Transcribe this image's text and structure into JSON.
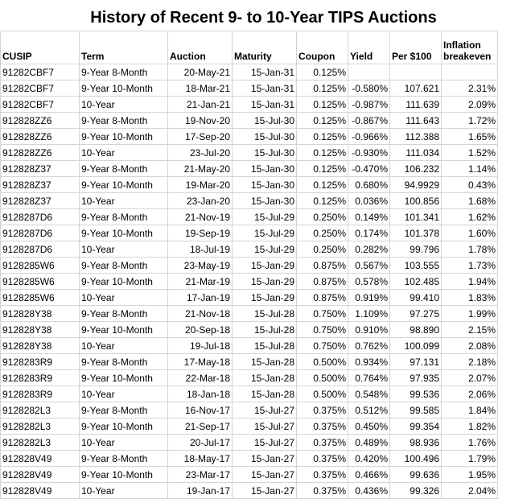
{
  "title": "History of Recent 9- to 10-Year TIPS Auctions",
  "headers": [
    "CUSIP",
    "Term",
    "Auction",
    "Maturity",
    "Coupon",
    "Yield",
    "Per $100",
    "Inflation breakeven"
  ],
  "rows": [
    [
      "91282CBF7",
      "9-Year 8-Month",
      "20-May-21",
      "15-Jan-31",
      "0.125%",
      "",
      "",
      ""
    ],
    [
      "91282CBF7",
      "9-Year 10-Month",
      "18-Mar-21",
      "15-Jan-31",
      "0.125%",
      "-0.580%",
      "107.621",
      "2.31%"
    ],
    [
      "91282CBF7",
      "10-Year",
      "21-Jan-21",
      "15-Jan-31",
      "0.125%",
      "-0.987%",
      "111.639",
      "2.09%"
    ],
    [
      "912828ZZ6",
      "9-Year 8-Month",
      "19-Nov-20",
      "15-Jul-30",
      "0.125%",
      "-0.867%",
      "111.643",
      "1.72%"
    ],
    [
      "912828ZZ6",
      "9-Year 10-Month",
      "17-Sep-20",
      "15-Jul-30",
      "0.125%",
      "-0.966%",
      "112.388",
      "1.65%"
    ],
    [
      "912828ZZ6",
      "10-Year",
      "23-Jul-20",
      "15-Jul-30",
      "0.125%",
      "-0.930%",
      "111.034",
      "1.52%"
    ],
    [
      "912828Z37",
      "9-Year 8-Month",
      "21-May-20",
      "15-Jan-30",
      "0.125%",
      "-0.470%",
      "106.232",
      "1.14%"
    ],
    [
      "912828Z37",
      "9-Year 10-Month",
      "19-Mar-20",
      "15-Jan-30",
      "0.125%",
      "0.680%",
      "94.9929",
      "0.43%"
    ],
    [
      "912828Z37",
      "10-Year",
      "23-Jan-20",
      "15-Jan-30",
      "0.125%",
      "0.036%",
      "100.856",
      "1.68%"
    ],
    [
      "9128287D6",
      "9-Year 8-Month",
      "21-Nov-19",
      "15-Jul-29",
      "0.250%",
      "0.149%",
      "101.341",
      "1.62%"
    ],
    [
      "9128287D6",
      "9-Year 10-Month",
      "19-Sep-19",
      "15-Jul-29",
      "0.250%",
      "0.174%",
      "101.378",
      "1.60%"
    ],
    [
      "9128287D6",
      "10-Year",
      "18-Jul-19",
      "15-Jul-29",
      "0.250%",
      "0.282%",
      "99.796",
      "1.78%"
    ],
    [
      "9128285W6",
      "9-Year 8-Month",
      "23-May-19",
      "15-Jan-29",
      "0.875%",
      "0.567%",
      "103.555",
      "1.73%"
    ],
    [
      "9128285W6",
      "9-Year 10-Month",
      "21-Mar-19",
      "15-Jan-29",
      "0.875%",
      "0.578%",
      "102.485",
      "1.94%"
    ],
    [
      "9128285W6",
      "10-Year",
      "17-Jan-19",
      "15-Jan-29",
      "0.875%",
      "0.919%",
      "99.410",
      "1.83%"
    ],
    [
      "912828Y38",
      "9-Year 8-Month",
      "21-Nov-18",
      "15-Jul-28",
      "0.750%",
      "1.109%",
      "97.275",
      "1.99%"
    ],
    [
      "912828Y38",
      "9-Year 10-Month",
      "20-Sep-18",
      "15-Jul-28",
      "0.750%",
      "0.910%",
      "98.890",
      "2.15%"
    ],
    [
      "912828Y38",
      "10-Year",
      "19-Jul-18",
      "15-Jul-28",
      "0.750%",
      "0.762%",
      "100.099",
      "2.08%"
    ],
    [
      "9128283R9",
      "9-Year 8-Month",
      "17-May-18",
      "15-Jan-28",
      "0.500%",
      "0.934%",
      "97.131",
      "2.18%"
    ],
    [
      "9128283R9",
      "9-Year 10-Month",
      "22-Mar-18",
      "15-Jan-28",
      "0.500%",
      "0.764%",
      "97.935",
      "2.07%"
    ],
    [
      "9128283R9",
      "10-Year",
      "18-Jan-18",
      "15-Jan-28",
      "0.500%",
      "0.548%",
      "99.536",
      "2.06%"
    ],
    [
      "9128282L3",
      "9-Year 8-Month",
      "16-Nov-17",
      "15-Jul-27",
      "0.375%",
      "0.512%",
      "99.585",
      "1.84%"
    ],
    [
      "9128282L3",
      "9-Year 10-Month",
      "21-Sep-17",
      "15-Jul-27",
      "0.375%",
      "0.450%",
      "99.354",
      "1.82%"
    ],
    [
      "9128282L3",
      "10-Year",
      "20-Jul-17",
      "15-Jul-27",
      "0.375%",
      "0.489%",
      "98.936",
      "1.76%"
    ],
    [
      "912828V49",
      "9-Year 8-Month",
      "18-May-17",
      "15-Jan-27",
      "0.375%",
      "0.420%",
      "100.496",
      "1.79%"
    ],
    [
      "912828V49",
      "9-Year 10-Month",
      "23-Mar-17",
      "15-Jan-27",
      "0.375%",
      "0.466%",
      "99.636",
      "1.95%"
    ],
    [
      "912828V49",
      "10-Year",
      "19-Jan-17",
      "15-Jan-27",
      "0.375%",
      "0.436%",
      "99.326",
      "2.04%"
    ]
  ]
}
